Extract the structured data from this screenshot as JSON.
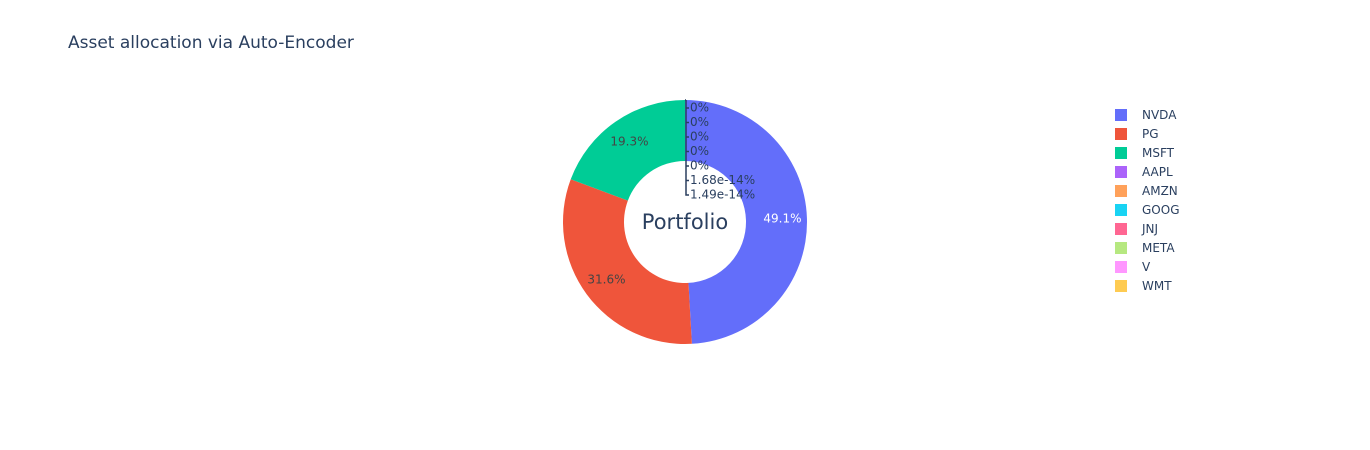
{
  "chart_data": {
    "type": "pie",
    "title": "Asset allocation via Auto-Encoder",
    "center_label": "Portfolio",
    "hole": 0.5,
    "slices": [
      {
        "label": "NVDA",
        "percent": 49.1,
        "text": "49.1%",
        "color": "#636efa"
      },
      {
        "label": "PG",
        "percent": 31.6,
        "text": "31.6%",
        "color": "#ef553b"
      },
      {
        "label": "MSFT",
        "percent": 19.3,
        "text": "19.3%",
        "color": "#00cc96"
      },
      {
        "label": "AAPL",
        "percent": 0,
        "text": "0%",
        "color": "#ab63fa"
      },
      {
        "label": "AMZN",
        "percent": 0,
        "text": "0%",
        "color": "#ffa15a"
      },
      {
        "label": "GOOG",
        "percent": 0,
        "text": "0%",
        "color": "#19d3f3"
      },
      {
        "label": "JNJ",
        "percent": 0,
        "text": "0%",
        "color": "#ff6692"
      },
      {
        "label": "META",
        "percent": 0,
        "text": "0%",
        "color": "#b6e880"
      },
      {
        "label": "V",
        "percent": 1.68e-14,
        "text": "1.68e-14%",
        "color": "#ff97ff"
      },
      {
        "label": "WMT",
        "percent": 1.49e-14,
        "text": "1.49e-14%",
        "color": "#fecb52"
      }
    ],
    "legend_position": "right"
  }
}
